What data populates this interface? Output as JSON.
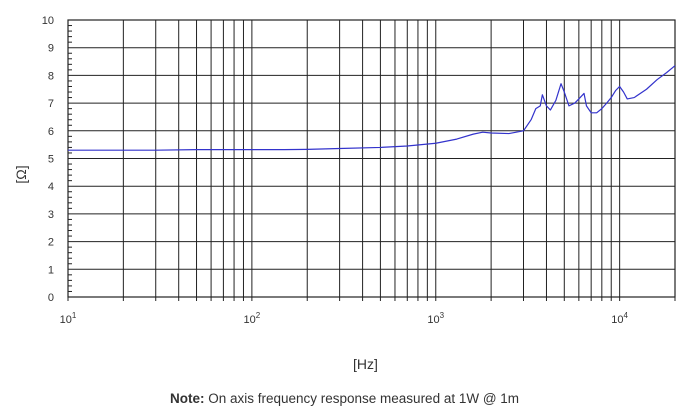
{
  "chart_data": {
    "type": "line",
    "title": "",
    "xlabel": "[Hz]",
    "ylabel": "[Ω]",
    "xscale": "log",
    "xlim": [
      10,
      20000
    ],
    "ylim": [
      0,
      10
    ],
    "grid": true,
    "x_tick_labels": [
      {
        "value": 10,
        "base": "10",
        "exp": "1"
      },
      {
        "value": 100,
        "base": "10",
        "exp": "2"
      },
      {
        "value": 1000,
        "base": "10",
        "exp": "3"
      },
      {
        "value": 10000,
        "base": "10",
        "exp": "4"
      }
    ],
    "y_ticks": [
      0,
      1,
      2,
      3,
      4,
      5,
      6,
      7,
      8,
      9,
      10
    ],
    "series": [
      {
        "color": "#3333cc",
        "x": [
          10,
          15,
          20,
          30,
          50,
          70,
          100,
          150,
          200,
          300,
          500,
          700,
          1000,
          1300,
          1600,
          1800,
          2000,
          2500,
          3000,
          3300,
          3500,
          3700,
          3800,
          4000,
          4200,
          4500,
          4800,
          5000,
          5300,
          5700,
          6000,
          6400,
          6600,
          7000,
          7500,
          8000,
          8500,
          9000,
          9500,
          10000,
          10500,
          11000,
          12000,
          14000,
          16000,
          18000,
          20000
        ],
        "y": [
          5.3,
          5.3,
          5.3,
          5.3,
          5.32,
          5.32,
          5.32,
          5.32,
          5.33,
          5.36,
          5.4,
          5.45,
          5.55,
          5.7,
          5.88,
          5.95,
          5.92,
          5.9,
          6.0,
          6.4,
          6.8,
          6.9,
          7.3,
          6.9,
          6.75,
          7.1,
          7.7,
          7.4,
          6.9,
          7.0,
          7.15,
          7.35,
          6.9,
          6.65,
          6.65,
          6.8,
          7.0,
          7.2,
          7.45,
          7.6,
          7.4,
          7.15,
          7.2,
          7.5,
          7.85,
          8.1,
          8.35
        ]
      }
    ]
  },
  "note": {
    "bold": "Note:",
    "text": " On axis frequency response measured at 1W @ 1m"
  }
}
